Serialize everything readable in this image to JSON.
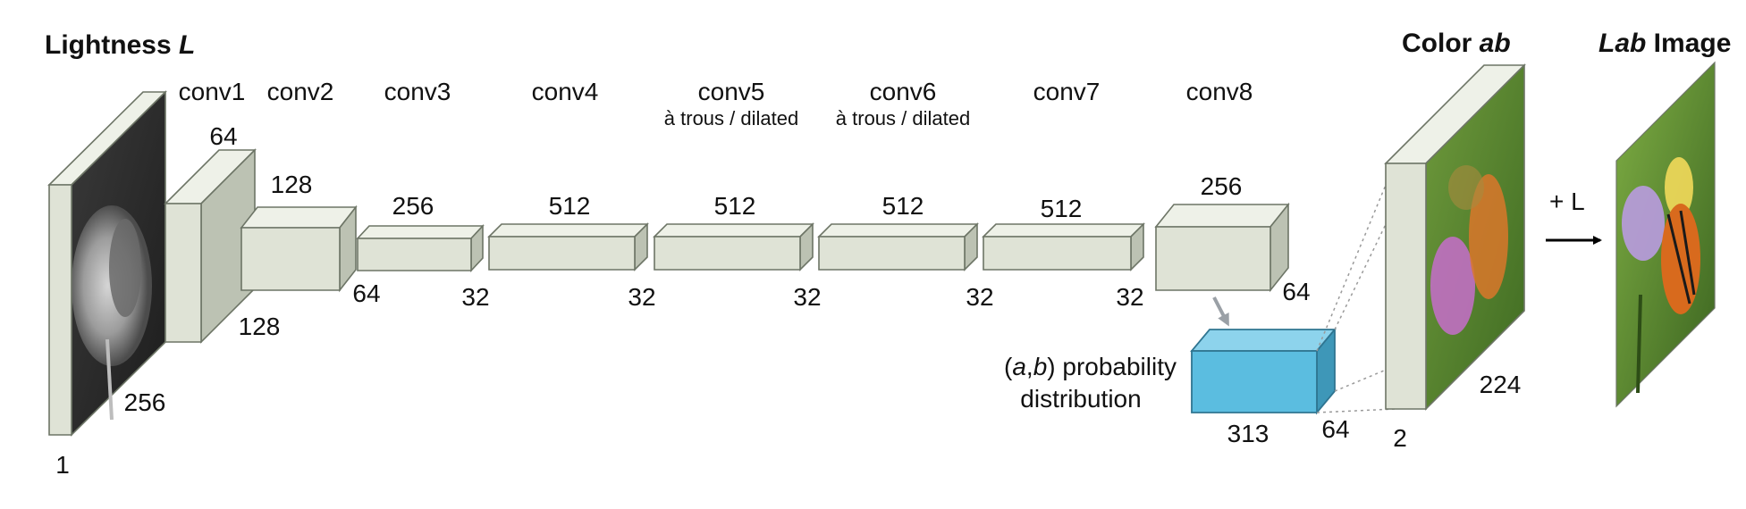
{
  "titles": {
    "lightness_prefix": "Lightness ",
    "lightness_var": "L",
    "color_prefix": "Color ",
    "color_var": "ab",
    "lab_var": "Lab",
    "lab_suffix": " Image"
  },
  "layers": [
    {
      "name": "conv1",
      "sub": "",
      "top_dim": "64",
      "bottom_dim": "128"
    },
    {
      "name": "conv2",
      "sub": "",
      "top_dim": "128",
      "bottom_dim": "64"
    },
    {
      "name": "conv3",
      "sub": "",
      "top_dim": "256",
      "bottom_dim": "32"
    },
    {
      "name": "conv4",
      "sub": "",
      "top_dim": "512",
      "bottom_dim": "32"
    },
    {
      "name": "conv5",
      "sub": "à trous / dilated",
      "top_dim": "512",
      "bottom_dim": "32"
    },
    {
      "name": "conv6",
      "sub": "à trous / dilated",
      "top_dim": "512",
      "bottom_dim": "32"
    },
    {
      "name": "conv7",
      "sub": "",
      "top_dim": "512",
      "bottom_dim": "32"
    },
    {
      "name": "conv8",
      "sub": "",
      "top_dim": "256",
      "bottom_dim": "64"
    }
  ],
  "input": {
    "size_label": "256",
    "channel_label": "1"
  },
  "output": {
    "size_label": "224",
    "channel_label": "2"
  },
  "distribution": {
    "label_open": "(",
    "label_a": "a",
    "label_comma": ",",
    "label_b": "b",
    "label_rest": ") probability",
    "label_line2": "distribution",
    "bins_label": "313",
    "size_label": "64"
  },
  "plus_l": "+ L",
  "colors": {
    "block_front": "#dfe3d6",
    "block_side": "#bcc2b3",
    "dist_block": "#5bbde0",
    "color_image": "#5c8a2e"
  }
}
